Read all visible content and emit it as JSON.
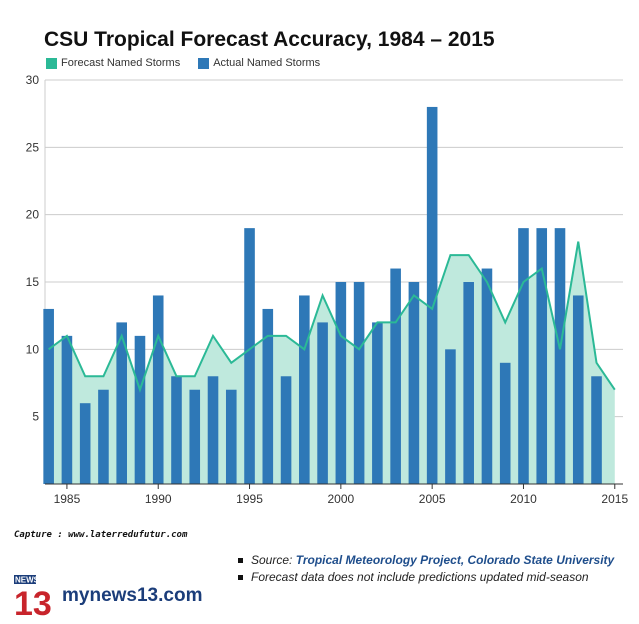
{
  "title": "CSU Tropical Forecast Accuracy, 1984 – 2015",
  "legend": {
    "forecast": "Forecast Named Storms",
    "actual": "Actual Named Storms"
  },
  "colors": {
    "forecast_line": "#2bb996",
    "forecast_fill": "#bfe9dd",
    "actual_bar": "#2e78b7",
    "grid": "#cccccc",
    "axis": "#333333"
  },
  "chart_data": {
    "type": "bar",
    "title": "CSU Tropical Forecast Accuracy, 1984 – 2015",
    "xlabel": "",
    "ylabel": "",
    "x": [
      1984,
      1985,
      1986,
      1987,
      1988,
      1989,
      1990,
      1991,
      1992,
      1993,
      1994,
      1995,
      1996,
      1997,
      1998,
      1999,
      2000,
      2001,
      2002,
      2003,
      2004,
      2005,
      2006,
      2007,
      2008,
      2009,
      2010,
      2011,
      2012,
      2013,
      2014,
      2015
    ],
    "xticks": [
      "1985",
      "1990",
      "1995",
      "2000",
      "2005",
      "2010",
      "2015"
    ],
    "xtick_values": [
      1985,
      1990,
      1995,
      2000,
      2005,
      2010,
      2015
    ],
    "yticks": [
      "5",
      "10",
      "15",
      "20",
      "25",
      "30"
    ],
    "ylim": [
      0,
      30
    ],
    "grid": true,
    "legend_position": "top-left",
    "series": [
      {
        "name": "Forecast Named Storms",
        "type": "area",
        "values": [
          10,
          11,
          8,
          8,
          11,
          7,
          11,
          8,
          8,
          11,
          9,
          10,
          11,
          11,
          10,
          14,
          11,
          10,
          12,
          12,
          14,
          13,
          17,
          17,
          15,
          12,
          15,
          16,
          10,
          18,
          9,
          7
        ]
      },
      {
        "name": "Actual Named Storms",
        "type": "bar",
        "values": [
          13,
          11,
          6,
          7,
          12,
          11,
          14,
          8,
          7,
          8,
          7,
          19,
          13,
          8,
          14,
          12,
          15,
          15,
          12,
          16,
          15,
          28,
          10,
          15,
          16,
          9,
          19,
          19,
          19,
          14,
          8,
          null
        ]
      }
    ]
  },
  "footer": {
    "capture": "Capture : www.laterredufutur.com",
    "source_prefix": "Source: ",
    "source_link": "Tropical Meteorology Project, Colorado State University",
    "note": "Forecast data does not include predictions updated mid-season",
    "logo_badge_top": "NEWS",
    "logo_badge_number": "13",
    "logo_text": "mynews13.com"
  }
}
